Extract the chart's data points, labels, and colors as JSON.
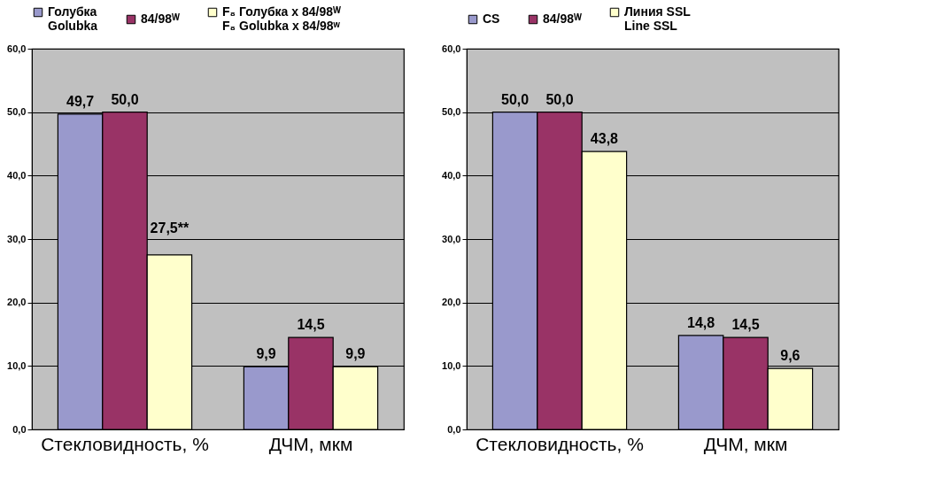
{
  "chart_data": [
    {
      "type": "bar",
      "categories": [
        "Стекловидность, %",
        "ДЧМ, мкм"
      ],
      "series": [
        {
          "name": "Голубка\nGolubka",
          "color": "#9999cc",
          "values": [
            49.7,
            9.9
          ],
          "value_labels": [
            "49,7",
            "9,9"
          ]
        },
        {
          "name": "84/98ᵂ",
          "color": "#993366",
          "values": [
            50.0,
            14.5
          ],
          "value_labels": [
            "50,0",
            "14,5"
          ]
        },
        {
          "name": "F₈ Голубка x 84/98ᵂ\nF₈ Golubka x 84/98ʷ",
          "color": "#ffffcc",
          "values": [
            27.5,
            9.9
          ],
          "value_labels": [
            "27,5**",
            "9,9"
          ]
        }
      ],
      "ylim": [
        0,
        60
      ],
      "yticks": [
        {
          "value": 0,
          "label": "0,0"
        },
        {
          "value": 10,
          "label": "10,0"
        },
        {
          "value": 20,
          "label": "20,0"
        },
        {
          "value": 30,
          "label": "30,0"
        },
        {
          "value": 40,
          "label": "40,0"
        },
        {
          "value": 50,
          "label": "50,0"
        },
        {
          "value": 60,
          "label": "60,0"
        }
      ],
      "grid": "y",
      "legend": "top"
    },
    {
      "type": "bar",
      "categories": [
        "Стекловидность, %",
        "ДЧМ, мкм"
      ],
      "series": [
        {
          "name": "CS",
          "color": "#9999cc",
          "values": [
            50.0,
            14.8
          ],
          "value_labels": [
            "50,0",
            "14,8"
          ]
        },
        {
          "name": "84/98ᵂ",
          "color": "#993366",
          "values": [
            50.0,
            14.5
          ],
          "value_labels": [
            "50,0",
            "14,5"
          ]
        },
        {
          "name": "Линия SSL\nLine SSL",
          "color": "#ffffcc",
          "values": [
            43.8,
            9.6
          ],
          "value_labels": [
            "43,8",
            "9,6"
          ]
        }
      ],
      "ylim": [
        0,
        60
      ],
      "yticks": [
        {
          "value": 0,
          "label": "0,0"
        },
        {
          "value": 10,
          "label": "10,0"
        },
        {
          "value": 20,
          "label": "20,0"
        },
        {
          "value": 30,
          "label": "30,0"
        },
        {
          "value": 40,
          "label": "40,0"
        },
        {
          "value": 50,
          "label": "50,0"
        },
        {
          "value": 60,
          "label": "60,0"
        }
      ],
      "grid": "y",
      "legend": "top"
    }
  ]
}
